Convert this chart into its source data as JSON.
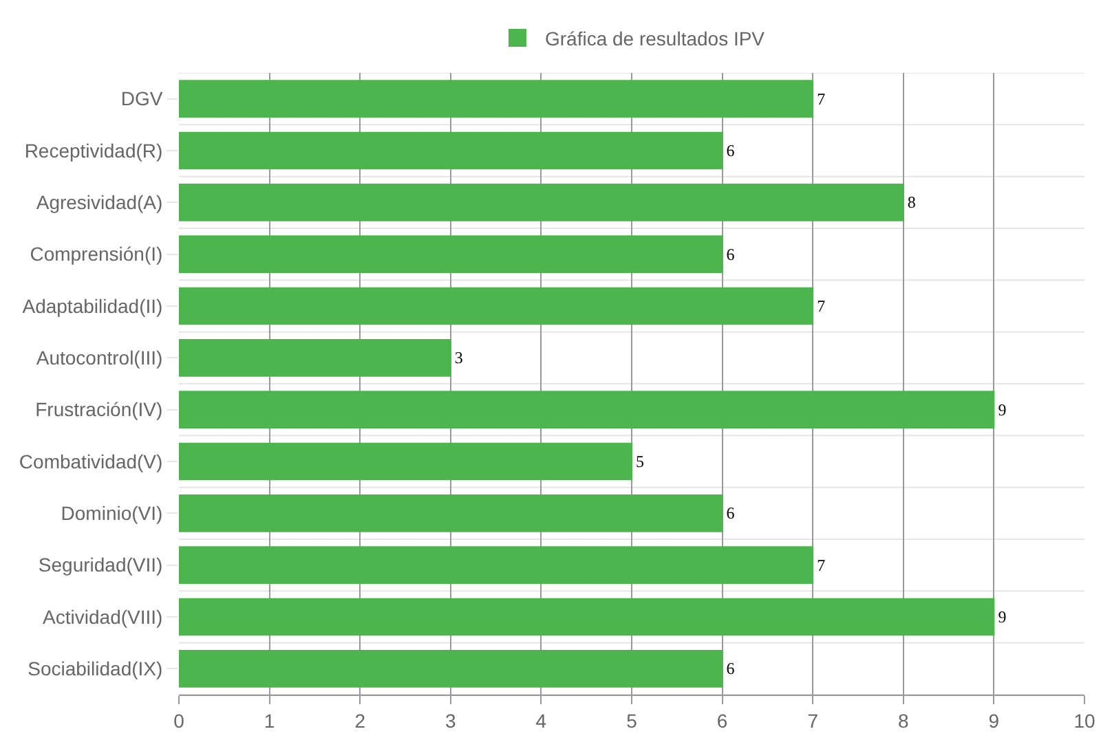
{
  "chart_data": {
    "type": "bar",
    "orientation": "horizontal",
    "categories": [
      "DGV",
      "Receptividad(R)",
      "Agresividad(A)",
      "Comprensión(I)",
      "Adaptabilidad(II)",
      "Autocontrol(III)",
      "Frustración(IV)",
      "Combatividad(V)",
      "Dominio(VI)",
      "Seguridad(VII)",
      "Actividad(VIII)",
      "Sociabilidad(IX)"
    ],
    "series": [
      {
        "name": "Gráfica de resultados IPV",
        "color": "#4db54d",
        "values": [
          7,
          6,
          8,
          6,
          7,
          3,
          9,
          5,
          6,
          7,
          9,
          6
        ]
      }
    ],
    "xlim": [
      0,
      10
    ],
    "xticks": [
      0,
      1,
      2,
      3,
      4,
      5,
      6,
      7,
      8,
      9,
      10
    ],
    "grid": true,
    "legend": "top",
    "data_labels": true
  }
}
